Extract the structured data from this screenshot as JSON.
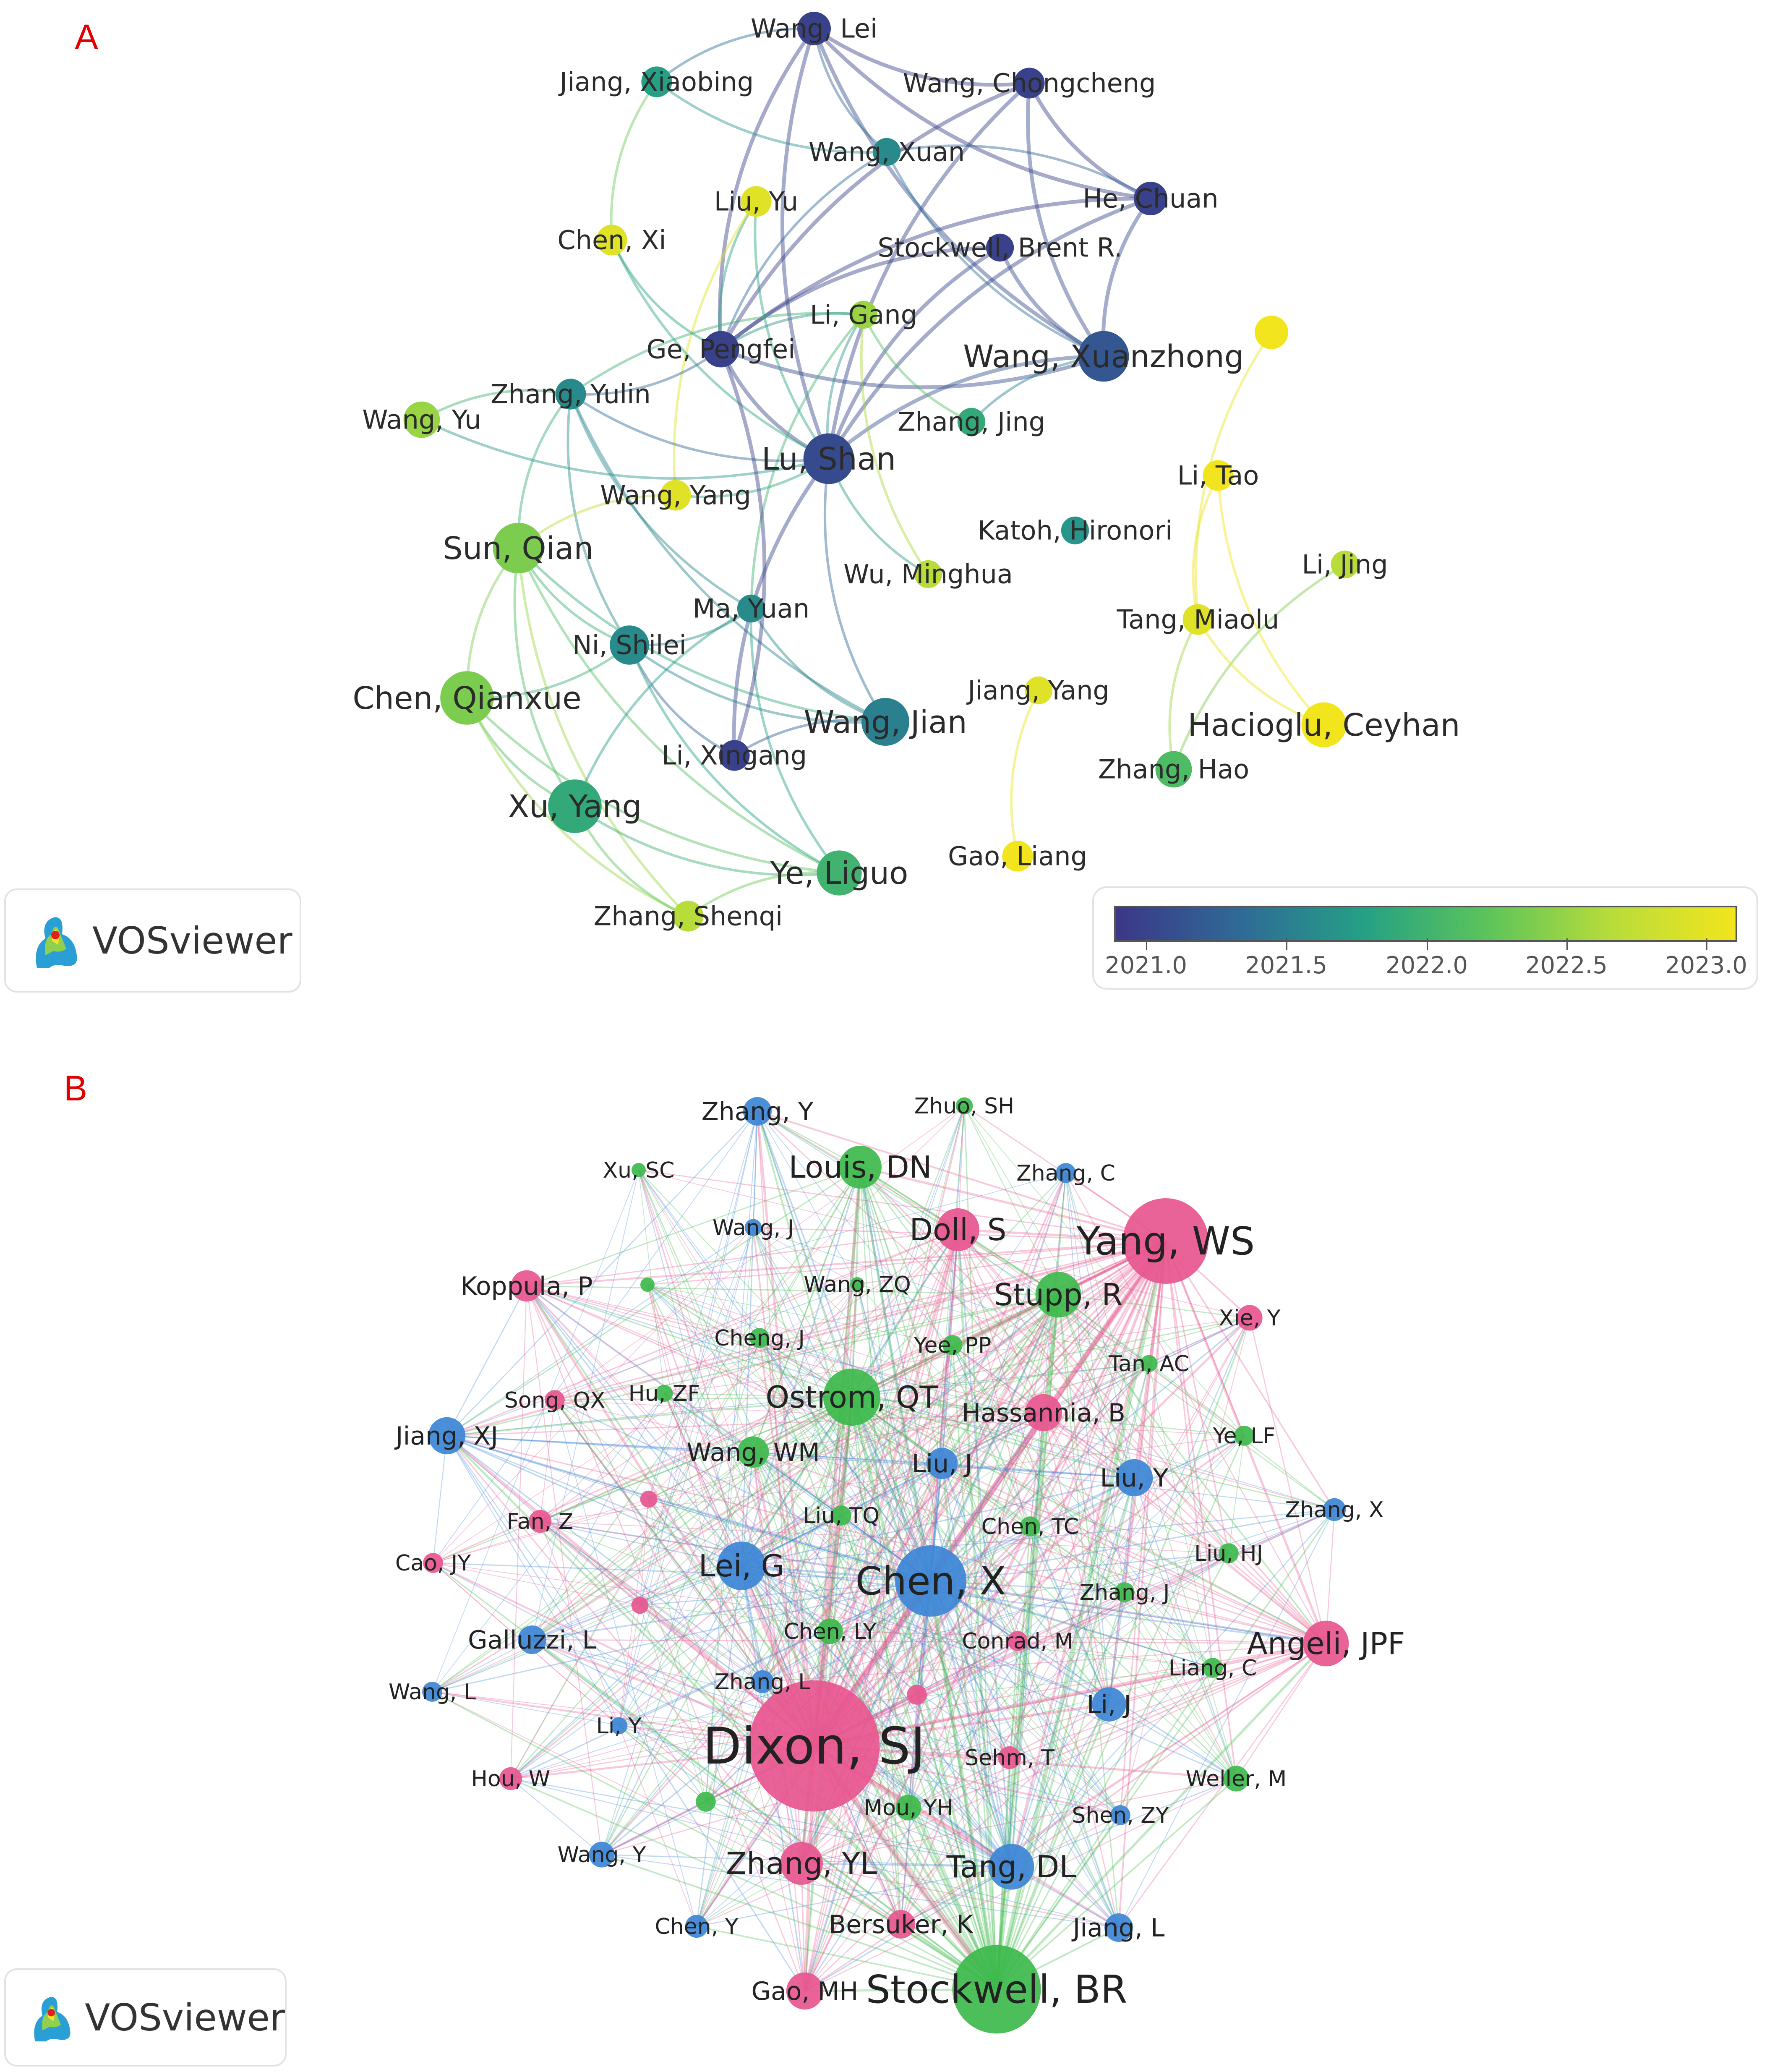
{
  "panel_a": {
    "letter": "A",
    "logo_text": "VOSviewer",
    "colorbar_ticks": [
      "2021.0",
      "2021.5",
      "2022.0",
      "2022.5",
      "2023.0"
    ],
    "nodes": [
      {
        "id": "a1",
        "label": "Wang, Lei",
        "year": 2021.1,
        "weight": 1.0
      },
      {
        "id": "a2",
        "label": "Jiang, Xiaobing",
        "year": 2022.0,
        "weight": 0.9
      },
      {
        "id": "a3",
        "label": "Wang, Chongcheng",
        "year": 2021.1,
        "weight": 0.9
      },
      {
        "id": "a4",
        "label": "Wang, Xuan",
        "year": 2021.8,
        "weight": 0.8
      },
      {
        "id": "a5",
        "label": "Liu, Yu",
        "year": 2022.9,
        "weight": 0.9
      },
      {
        "id": "a6",
        "label": "He, Chuan",
        "year": 2021.1,
        "weight": 1.0
      },
      {
        "id": "a7",
        "label": "Chen, Xi",
        "year": 2022.9,
        "weight": 0.9
      },
      {
        "id": "a8",
        "label": "Stockwell, Brent R.",
        "year": 2021.1,
        "weight": 0.8
      },
      {
        "id": "a9",
        "label": "Li, Gang",
        "year": 2022.6,
        "weight": 0.8
      },
      {
        "id": "a10",
        "label": "Ge, Pengfei",
        "year": 2021.1,
        "weight": 1.1
      },
      {
        "id": "a11",
        "label": "Wang, Xuanzhong",
        "year": 2021.3,
        "weight": 1.6
      },
      {
        "id": "a12",
        "label": "",
        "year": 2023.0,
        "weight": 1.0
      },
      {
        "id": "a13",
        "label": "Zhang, Yulin",
        "year": 2021.8,
        "weight": 0.9
      },
      {
        "id": "a14",
        "label": "Wang, Yu",
        "year": 2022.6,
        "weight": 1.1
      },
      {
        "id": "a15",
        "label": "Zhang, Jing",
        "year": 2022.1,
        "weight": 0.8
      },
      {
        "id": "a16",
        "label": "Lu, Shan",
        "year": 2021.2,
        "weight": 1.6
      },
      {
        "id": "a17",
        "label": "Li, Tao",
        "year": 2023.0,
        "weight": 0.9
      },
      {
        "id": "a18",
        "label": "Wang, Yang",
        "year": 2022.9,
        "weight": 0.9
      },
      {
        "id": "a19",
        "label": "Katoh, Hironori",
        "year": 2021.9,
        "weight": 0.8
      },
      {
        "id": "a20",
        "label": "Sun, Qian",
        "year": 2022.5,
        "weight": 1.6
      },
      {
        "id": "a21",
        "label": "Li, Jing",
        "year": 2022.7,
        "weight": 0.8
      },
      {
        "id": "a22",
        "label": "Wu, Minghua",
        "year": 2022.7,
        "weight": 0.8
      },
      {
        "id": "a23",
        "label": "Ma, Yuan",
        "year": 2021.8,
        "weight": 0.8
      },
      {
        "id": "a24",
        "label": "Tang, Miaolu",
        "year": 2022.9,
        "weight": 0.9
      },
      {
        "id": "a25",
        "label": "Ni, Shilei",
        "year": 2021.8,
        "weight": 1.2
      },
      {
        "id": "a26",
        "label": "Jiang, Yang",
        "year": 2022.9,
        "weight": 0.8
      },
      {
        "id": "a27",
        "label": "Chen, Qianxue",
        "year": 2022.5,
        "weight": 1.7
      },
      {
        "id": "a28",
        "label": "Wang, Jian",
        "year": 2021.7,
        "weight": 1.5
      },
      {
        "id": "a29",
        "label": "Hacioglu, Ceyhan",
        "year": 2023.0,
        "weight": 1.4
      },
      {
        "id": "a30",
        "label": "Li, Xingang",
        "year": 2021.1,
        "weight": 0.9
      },
      {
        "id": "a31",
        "label": "Zhang, Hao",
        "year": 2022.3,
        "weight": 1.1
      },
      {
        "id": "a32",
        "label": "Xu, Yang",
        "year": 2022.1,
        "weight": 1.7
      },
      {
        "id": "a33",
        "label": "Gao, Liang",
        "year": 2023.0,
        "weight": 0.9
      },
      {
        "id": "a34",
        "label": "Ye, Liguo",
        "year": 2022.2,
        "weight": 1.4
      },
      {
        "id": "a35",
        "label": "Zhang, Shenqi",
        "year": 2022.7,
        "weight": 0.9
      }
    ],
    "edges": [
      [
        "a1",
        "a10"
      ],
      [
        "a1",
        "a16"
      ],
      [
        "a1",
        "a11"
      ],
      [
        "a1",
        "a6"
      ],
      [
        "a1",
        "a3"
      ],
      [
        "a1",
        "a4"
      ],
      [
        "a1",
        "a2"
      ],
      [
        "a3",
        "a16"
      ],
      [
        "a3",
        "a6"
      ],
      [
        "a3",
        "a10"
      ],
      [
        "a3",
        "a11"
      ],
      [
        "a6",
        "a10"
      ],
      [
        "a6",
        "a11"
      ],
      [
        "a6",
        "a16"
      ],
      [
        "a6",
        "a4"
      ],
      [
        "a8",
        "a10"
      ],
      [
        "a8",
        "a11"
      ],
      [
        "a8",
        "a16"
      ],
      [
        "a10",
        "a11"
      ],
      [
        "a10",
        "a16"
      ],
      [
        "a11",
        "a16"
      ],
      [
        "a11",
        "a15"
      ],
      [
        "a4",
        "a10"
      ],
      [
        "a4",
        "a11"
      ],
      [
        "a2",
        "a4"
      ],
      [
        "a2",
        "a7"
      ],
      [
        "a5",
        "a10"
      ],
      [
        "a5",
        "a18"
      ],
      [
        "a5",
        "a16"
      ],
      [
        "a7",
        "a10"
      ],
      [
        "a7",
        "a16"
      ],
      [
        "a9",
        "a10"
      ],
      [
        "a9",
        "a16"
      ],
      [
        "a9",
        "a13"
      ],
      [
        "a9",
        "a23"
      ],
      [
        "a9",
        "a22"
      ],
      [
        "a9",
        "a15"
      ],
      [
        "a13",
        "a14"
      ],
      [
        "a13",
        "a25"
      ],
      [
        "a13",
        "a28"
      ],
      [
        "a13",
        "a20"
      ],
      [
        "a13",
        "a23"
      ],
      [
        "a13",
        "a10"
      ],
      [
        "a13",
        "a16"
      ],
      [
        "a16",
        "a22"
      ],
      [
        "a16",
        "a28"
      ],
      [
        "a16",
        "a30"
      ],
      [
        "a18",
        "a20"
      ],
      [
        "a18",
        "a16"
      ],
      [
        "a14",
        "a16"
      ],
      [
        "a20",
        "a27"
      ],
      [
        "a20",
        "a32"
      ],
      [
        "a20",
        "a34"
      ],
      [
        "a20",
        "a35"
      ],
      [
        "a20",
        "a25"
      ],
      [
        "a20",
        "a28"
      ],
      [
        "a27",
        "a32"
      ],
      [
        "a27",
        "a35"
      ],
      [
        "a27",
        "a34"
      ],
      [
        "a27",
        "a25"
      ],
      [
        "a32",
        "a35"
      ],
      [
        "a32",
        "a34"
      ],
      [
        "a25",
        "a28"
      ],
      [
        "a25",
        "a30"
      ],
      [
        "a25",
        "a23"
      ],
      [
        "a25",
        "a34"
      ],
      [
        "a23",
        "a28"
      ],
      [
        "a23",
        "a34"
      ],
      [
        "a23",
        "a32"
      ],
      [
        "a28",
        "a30"
      ],
      [
        "a34",
        "a35"
      ],
      [
        "a30",
        "a10"
      ],
      [
        "a12",
        "a24"
      ],
      [
        "a17",
        "a24"
      ],
      [
        "a24",
        "a31"
      ],
      [
        "a21",
        "a31"
      ],
      [
        "a24",
        "a29"
      ],
      [
        "a26",
        "a33"
      ],
      [
        "a17",
        "a29"
      ]
    ]
  },
  "panel_b": {
    "letter": "B",
    "logo_text": "VOSviewer",
    "clusters": {
      "pink": "#e8568f",
      "green": "#3dba4c",
      "blue": "#3d86d6"
    },
    "nodes": [
      {
        "id": "b1",
        "label": "Zhang, Y",
        "cluster": "blue",
        "weight": 1.0
      },
      {
        "id": "b2",
        "label": "Zhuo, SH",
        "cluster": "green",
        "weight": 0.6
      },
      {
        "id": "b3",
        "label": "Xu, SC",
        "cluster": "green",
        "weight": 0.5
      },
      {
        "id": "b4",
        "label": "Louis, DN",
        "cluster": "green",
        "weight": 1.5
      },
      {
        "id": "b5",
        "label": "Zhang, C",
        "cluster": "blue",
        "weight": 0.7
      },
      {
        "id": "b6",
        "label": "Wang, J",
        "cluster": "blue",
        "weight": 0.6
      },
      {
        "id": "b7",
        "label": "Doll, S",
        "cluster": "pink",
        "weight": 1.5
      },
      {
        "id": "b8",
        "label": "Yang, WS",
        "cluster": "pink",
        "weight": 3.0
      },
      {
        "id": "b9",
        "label": "Koppula, P",
        "cluster": "pink",
        "weight": 1.1
      },
      {
        "id": "b10",
        "label": "",
        "cluster": "green",
        "weight": 0.5
      },
      {
        "id": "b11",
        "label": "Wang, ZQ",
        "cluster": "green",
        "weight": 0.5
      },
      {
        "id": "b12",
        "label": "Stupp, R",
        "cluster": "green",
        "weight": 1.6
      },
      {
        "id": "b13",
        "label": "Xie, Y",
        "cluster": "pink",
        "weight": 0.9
      },
      {
        "id": "b14",
        "label": "Cheng, J",
        "cluster": "green",
        "weight": 0.7
      },
      {
        "id": "b15",
        "label": "Yee, PP",
        "cluster": "green",
        "weight": 0.7
      },
      {
        "id": "b16",
        "label": "Tan, AC",
        "cluster": "green",
        "weight": 0.6
      },
      {
        "id": "b17",
        "label": "Song, QX",
        "cluster": "pink",
        "weight": 0.7
      },
      {
        "id": "b18",
        "label": "Hu, ZF",
        "cluster": "green",
        "weight": 0.6
      },
      {
        "id": "b19",
        "label": "Ostrom, QT",
        "cluster": "green",
        "weight": 2.0
      },
      {
        "id": "b20",
        "label": "Hassannia, B",
        "cluster": "pink",
        "weight": 1.3
      },
      {
        "id": "b21",
        "label": "Jiang, XJ",
        "cluster": "blue",
        "weight": 1.3
      },
      {
        "id": "b22",
        "label": "Ye, LF",
        "cluster": "green",
        "weight": 0.7
      },
      {
        "id": "b23",
        "label": "Wang, WM",
        "cluster": "green",
        "weight": 1.1
      },
      {
        "id": "b24",
        "label": "Liu, J",
        "cluster": "blue",
        "weight": 1.1
      },
      {
        "id": "b25",
        "label": "Liu, Y",
        "cluster": "blue",
        "weight": 1.3
      },
      {
        "id": "b26",
        "label": "",
        "cluster": "pink",
        "weight": 0.6
      },
      {
        "id": "b27",
        "label": "Fan, Z",
        "cluster": "pink",
        "weight": 0.8
      },
      {
        "id": "b28",
        "label": "Liu, TQ",
        "cluster": "green",
        "weight": 0.7
      },
      {
        "id": "b29",
        "label": "Zhang, X",
        "cluster": "blue",
        "weight": 0.8
      },
      {
        "id": "b30",
        "label": "Chen, TC",
        "cluster": "green",
        "weight": 0.7
      },
      {
        "id": "b31",
        "label": "Cao, JY",
        "cluster": "pink",
        "weight": 0.7
      },
      {
        "id": "b32",
        "label": "Liu, HJ",
        "cluster": "green",
        "weight": 0.7
      },
      {
        "id": "b33",
        "label": "Lei, G",
        "cluster": "blue",
        "weight": 1.7
      },
      {
        "id": "b34",
        "label": "Chen, X",
        "cluster": "blue",
        "weight": 2.5
      },
      {
        "id": "b35",
        "label": "Zhang, J",
        "cluster": "green",
        "weight": 0.7
      },
      {
        "id": "b36",
        "label": "",
        "cluster": "pink",
        "weight": 0.6
      },
      {
        "id": "b37",
        "label": "Chen, LY",
        "cluster": "green",
        "weight": 0.9
      },
      {
        "id": "b38",
        "label": "Galluzzi, L",
        "cluster": "blue",
        "weight": 1.0
      },
      {
        "id": "b39",
        "label": "Conrad, M",
        "cluster": "pink",
        "weight": 0.7
      },
      {
        "id": "b40",
        "label": "Angeli, JPF",
        "cluster": "pink",
        "weight": 1.6
      },
      {
        "id": "b41",
        "label": "Liang, C",
        "cluster": "green",
        "weight": 0.7
      },
      {
        "id": "b42",
        "label": "Zhang, L",
        "cluster": "blue",
        "weight": 0.8
      },
      {
        "id": "b43",
        "label": "Wang, L",
        "cluster": "blue",
        "weight": 0.7
      },
      {
        "id": "b44",
        "label": "",
        "cluster": "pink",
        "weight": 0.7
      },
      {
        "id": "b45",
        "label": "Li, J",
        "cluster": "blue",
        "weight": 1.2
      },
      {
        "id": "b46",
        "label": "Li, Y",
        "cluster": "blue",
        "weight": 0.6
      },
      {
        "id": "b47",
        "label": "Dixon, SJ",
        "cluster": "pink",
        "weight": 4.6
      },
      {
        "id": "b48",
        "label": "Sehm, T",
        "cluster": "pink",
        "weight": 0.8
      },
      {
        "id": "b49",
        "label": "Hou, W",
        "cluster": "pink",
        "weight": 0.8
      },
      {
        "id": "b50",
        "label": "Weller, M",
        "cluster": "green",
        "weight": 0.9
      },
      {
        "id": "b51",
        "label": "",
        "cluster": "green",
        "weight": 0.7
      },
      {
        "id": "b52",
        "label": "Mou, YH",
        "cluster": "green",
        "weight": 0.9
      },
      {
        "id": "b53",
        "label": "Shen, ZY",
        "cluster": "blue",
        "weight": 0.7
      },
      {
        "id": "b54",
        "label": "Wang, Y",
        "cluster": "blue",
        "weight": 0.9
      },
      {
        "id": "b55",
        "label": "Zhang, YL",
        "cluster": "pink",
        "weight": 1.5
      },
      {
        "id": "b56",
        "label": "Tang, DL",
        "cluster": "blue",
        "weight": 1.6
      },
      {
        "id": "b57",
        "label": "Chen, Y",
        "cluster": "blue",
        "weight": 0.8
      },
      {
        "id": "b58",
        "label": "Bersuker, K",
        "cluster": "pink",
        "weight": 1.0
      },
      {
        "id": "b59",
        "label": "Jiang, L",
        "cluster": "blue",
        "weight": 1.0
      },
      {
        "id": "b60",
        "label": "Gao, MH",
        "cluster": "pink",
        "weight": 1.3
      },
      {
        "id": "b61",
        "label": "Stockwell, BR",
        "cluster": "green",
        "weight": 3.1
      }
    ]
  }
}
